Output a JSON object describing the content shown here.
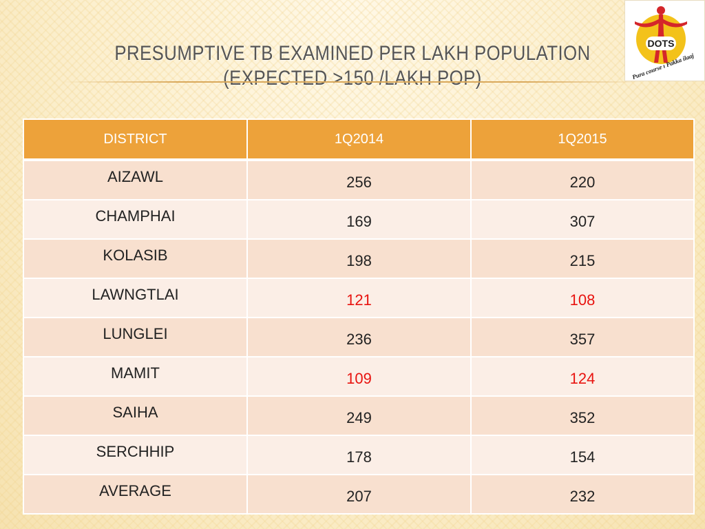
{
  "title": {
    "line1": "PRESUMPTIVE TB EXAMINED PER LAKH POPULATION",
    "line2": "(EXPECTED >150 /LAKH POP)"
  },
  "logo": {
    "text": "DOTS",
    "tagline": "Pura course ı Pakka ilaaj",
    "colors": {
      "circle": "#f3c21a",
      "figure": "#d4262a",
      "text": "#1a1a1a"
    }
  },
  "table": {
    "headers": [
      "DISTRICT",
      "1Q2014",
      "1Q2015"
    ],
    "rows": [
      {
        "district": "AIZAWL",
        "q2014": "256",
        "q2015": "220",
        "below2014": false,
        "below2015": false
      },
      {
        "district": "CHAMPHAI",
        "q2014": "169",
        "q2015": "307",
        "below2014": false,
        "below2015": false
      },
      {
        "district": "KOLASIB",
        "q2014": "198",
        "q2015": "215",
        "below2014": false,
        "below2015": false
      },
      {
        "district": "LAWNGTLAI",
        "q2014": "121",
        "q2015": "108",
        "below2014": true,
        "below2015": true
      },
      {
        "district": "LUNGLEI",
        "q2014": "236",
        "q2015": "357",
        "below2014": false,
        "below2015": false
      },
      {
        "district": "MAMIT",
        "q2014": "109",
        "q2015": "124",
        "below2014": true,
        "below2015": true
      },
      {
        "district": "SAIHA",
        "q2014": "249",
        "q2015": "352",
        "below2014": false,
        "below2015": false
      },
      {
        "district": "SERCHHIP",
        "q2014": "178",
        "q2015": "154",
        "below2014": false,
        "below2015": false
      },
      {
        "district": "AVERAGE",
        "q2014": "207",
        "q2015": "232",
        "below2014": false,
        "below2015": false
      }
    ],
    "colors": {
      "header": "#eda23a",
      "row_odd": "#f8e0cf",
      "row_even": "#fbeee6",
      "below_target": "#e8130f"
    }
  }
}
